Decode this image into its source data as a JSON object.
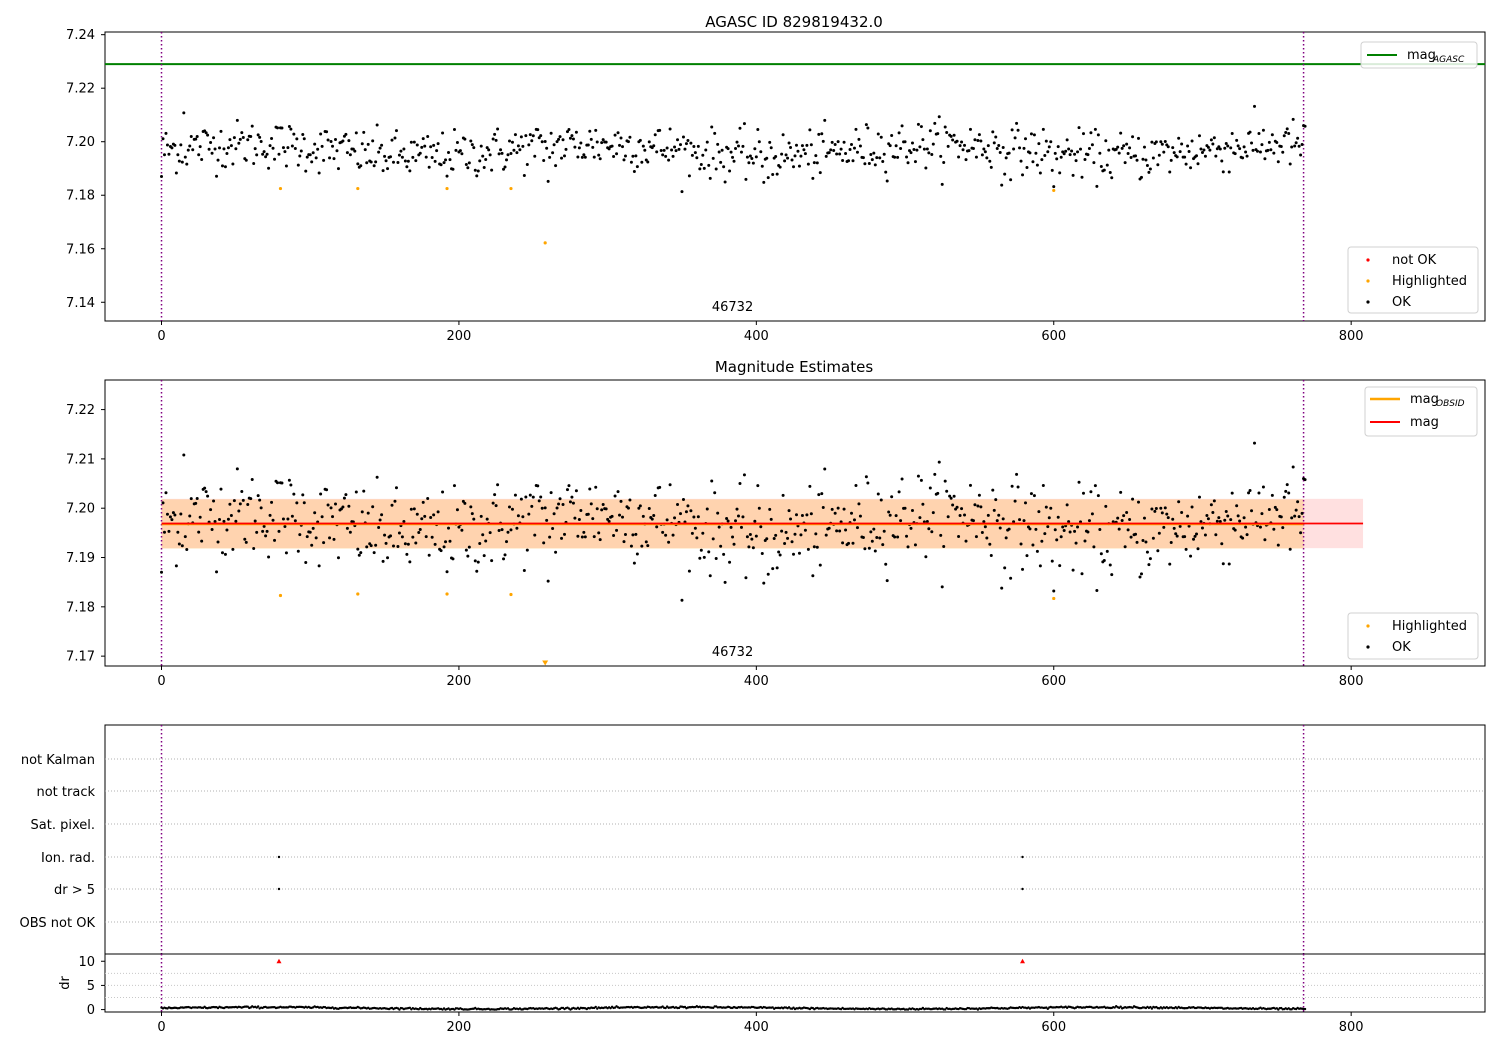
{
  "colors": {
    "ok": "#000000",
    "not_ok": "#ff0000",
    "highlighted": "#ffa500",
    "agasc_line": "#008000",
    "obsid_line": "#ffa500",
    "mag_line": "#ff0000",
    "obsid_band": "rgba(255,165,0,0.22)",
    "mag_band": "rgba(255,0,0,0.12)",
    "interval_line": "#800080"
  },
  "chart_data": [
    {
      "type": "scatter",
      "title": "AGASC ID 829819432.0",
      "xlim": [
        -38,
        890
      ],
      "ylim": [
        7.133,
        7.241
      ],
      "xticks": [
        "0",
        "200",
        "400",
        "600",
        "800"
      ],
      "xtick_values": [
        0,
        200,
        400,
        600,
        800
      ],
      "yticks": [
        "7.14",
        "7.16",
        "7.18",
        "7.20",
        "7.22",
        "7.24"
      ],
      "ytick_values": [
        7.14,
        7.16,
        7.18,
        7.2,
        7.22,
        7.24
      ],
      "interval_lines_x": [
        0,
        768
      ],
      "interval_label": "46732",
      "interval_label_x": 384,
      "mag_agasc": 7.229,
      "highlighted": {
        "x": [
          80,
          132,
          192,
          235,
          258,
          600
        ],
        "y": [
          7.1825,
          7.1825,
          7.1825,
          7.1825,
          7.1622,
          7.1818
        ]
      },
      "legend_lines": [
        {
          "label": "mag",
          "sub": "AGASC",
          "color": "#008000"
        }
      ],
      "legend_points": [
        {
          "label": "not OK",
          "color": "#ff0000"
        },
        {
          "label": "Highlighted",
          "color": "#ffa500"
        },
        {
          "label": "OK",
          "color": "#000000"
        }
      ],
      "ok_series": {
        "n": 770,
        "mean": 7.1968,
        "spread": 0.0085,
        "outliers": [
          [
            0,
            7.187
          ],
          [
            15,
            7.2108
          ],
          [
            260,
            7.1852
          ],
          [
            405,
            7.1848
          ],
          [
            565,
            7.1838
          ],
          [
            600,
            7.1832
          ]
        ]
      }
    },
    {
      "type": "scatter",
      "title": "Magnitude Estimates",
      "xlim": [
        -38,
        890
      ],
      "ylim": [
        7.168,
        7.226
      ],
      "xticks": [
        "0",
        "200",
        "400",
        "600",
        "800"
      ],
      "xtick_values": [
        0,
        200,
        400,
        600,
        800
      ],
      "yticks": [
        "7.17",
        "7.18",
        "7.19",
        "7.20",
        "7.21",
        "7.22"
      ],
      "ytick_values": [
        7.17,
        7.18,
        7.19,
        7.2,
        7.21,
        7.22
      ],
      "interval_lines_x": [
        0,
        768
      ],
      "interval_label": "46732",
      "interval_label_x": 384,
      "mag_obsid": 7.1968,
      "mag": 7.1969,
      "obsid_band": {
        "x": [
          0,
          768
        ],
        "y": [
          7.1918,
          7.2018
        ]
      },
      "mag_band": {
        "x": [
          0,
          808
        ],
        "y": [
          7.1919,
          7.2019
        ]
      },
      "below_range_marker": {
        "x": 258,
        "y": 7.1685
      },
      "highlighted": {
        "x": [
          80,
          132,
          192,
          235,
          600
        ],
        "y": [
          7.1823,
          7.1826,
          7.1826,
          7.1825,
          7.1817
        ]
      },
      "legend_lines": [
        {
          "label": "mag",
          "sub": "OBSID",
          "color": "#ffa500"
        },
        {
          "label": "mag",
          "sub": "",
          "color": "#ff0000"
        }
      ],
      "legend_points": [
        {
          "label": "Highlighted",
          "color": "#ffa500"
        },
        {
          "label": "OK",
          "color": "#000000"
        }
      ]
    },
    {
      "type": "scatter",
      "title": "",
      "xlim": [
        -38,
        890
      ],
      "xticks": [
        "0",
        "200",
        "400",
        "600",
        "800"
      ],
      "xtick_values": [
        0,
        200,
        400,
        600,
        800
      ],
      "interval_lines_x": [
        0,
        768
      ],
      "categories": [
        "not Kalman",
        "not track",
        "Sat. pixel.",
        "Ion. rad.",
        "dr > 5",
        "OBS not OK"
      ],
      "flags": {
        "Ion. rad.": [
          79,
          579
        ],
        "dr > 5": [
          79,
          579
        ]
      }
    },
    {
      "type": "scatter",
      "ylabel": "dr",
      "xlim": [
        -38,
        890
      ],
      "ylim": [
        -0.5,
        11.5
      ],
      "yticks": [
        "0",
        "5",
        "10"
      ],
      "ytick_values": [
        0,
        5,
        10
      ],
      "xticks": [
        "0",
        "200",
        "400",
        "600",
        "800"
      ],
      "xtick_values": [
        0,
        200,
        400,
        600,
        800
      ],
      "interval_lines_x": [
        0,
        768
      ],
      "clipped_markers": {
        "x": [
          79,
          579
        ],
        "y": [
          10,
          10
        ]
      },
      "dr_series": {
        "n": 770,
        "mean": 0.3,
        "spread": 0.15
      }
    }
  ]
}
